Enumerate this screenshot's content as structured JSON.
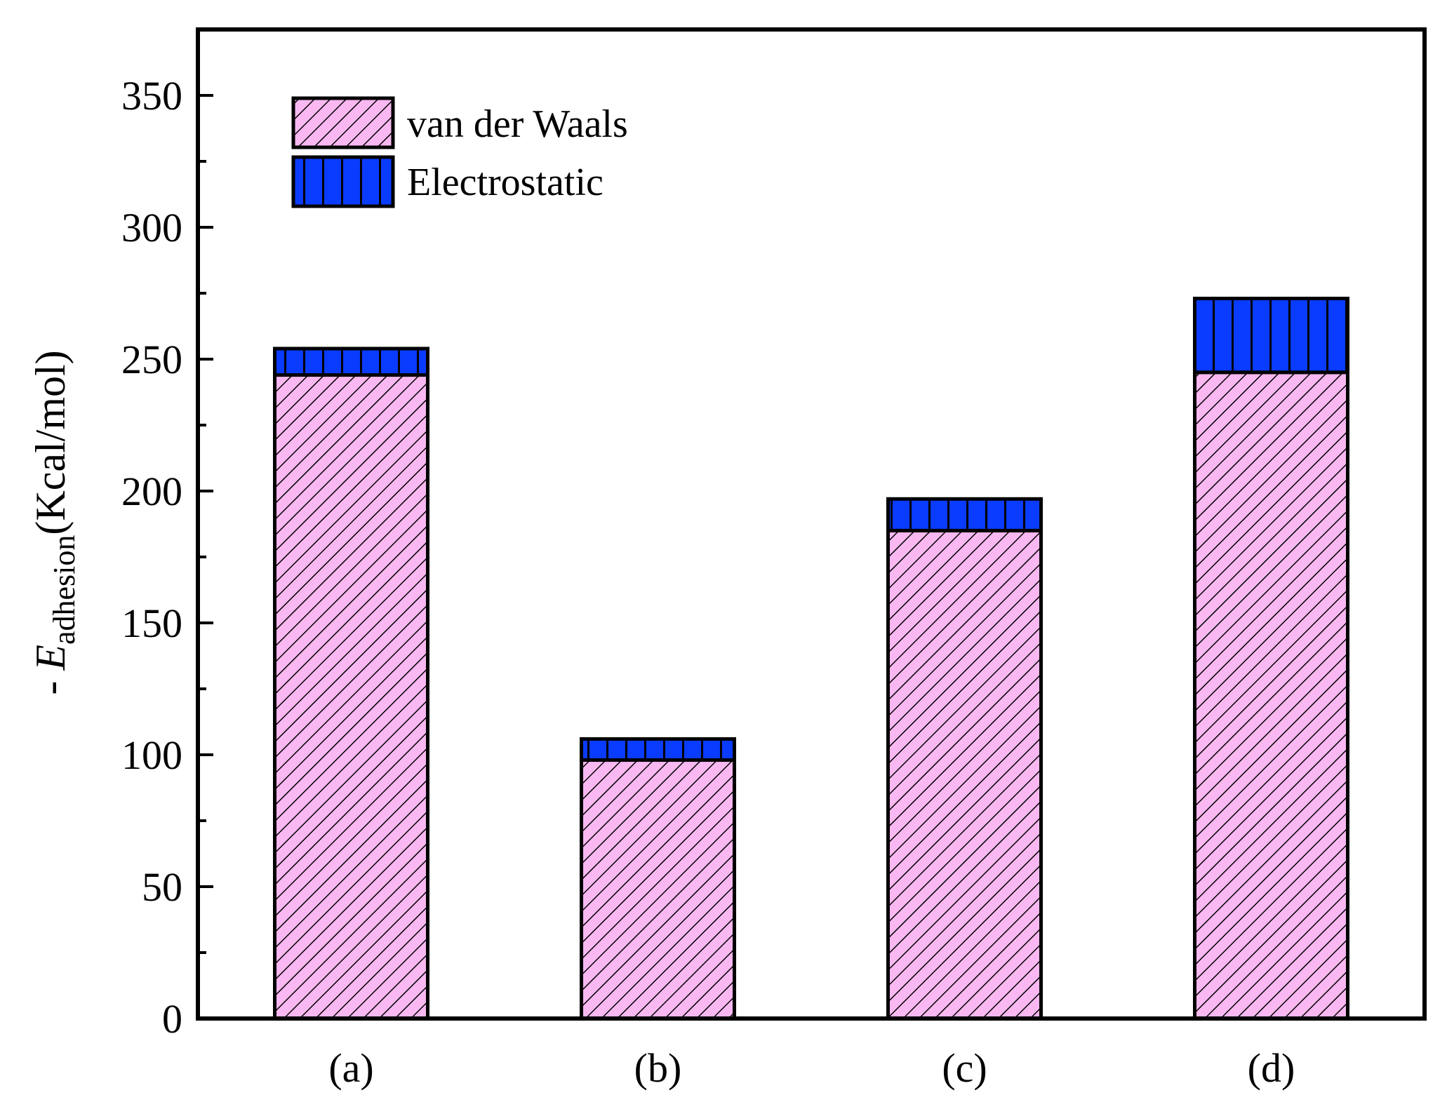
{
  "chart_data": {
    "type": "bar",
    "stacked": true,
    "categories": [
      "(a)",
      "(b)",
      "(c)",
      "(d)"
    ],
    "series": [
      {
        "name": "van der Waals",
        "values": [
          244,
          98,
          185,
          245
        ],
        "color": "#f9b8f1",
        "pattern": "diagonal-hatch"
      },
      {
        "name": "Electrostatic",
        "values": [
          10,
          8,
          12,
          28
        ],
        "color": "#0a3cff",
        "pattern": "vertical-lines"
      }
    ],
    "ylabel": {
      "prefix": "- ",
      "symbol": "E",
      "subscript": "adhesion",
      "unit": "(Kcal/mol)"
    },
    "xlabel": "",
    "ylim": [
      0,
      375
    ],
    "yticks": [
      0,
      50,
      100,
      150,
      200,
      250,
      300,
      350
    ],
    "yminor_step": 25,
    "grid": false,
    "legend_position": "top-left"
  }
}
